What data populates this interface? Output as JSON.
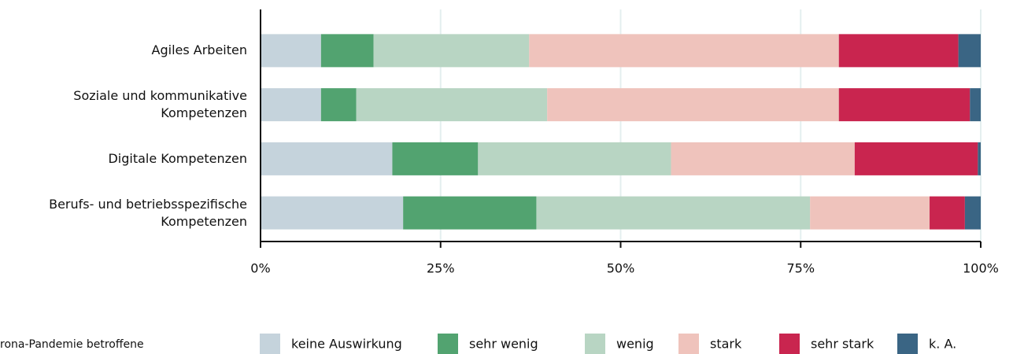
{
  "chart_data": {
    "type": "stacked-bar-horizontal",
    "categories": [
      "Agiles Arbeiten",
      "Soziale und kommunikative\nKompetenzen",
      "Digitale Kompetenzen",
      "Berufs- und betriebsspezifische\nKompetenzen"
    ],
    "series": [
      {
        "name": "keine Auswirkung",
        "color": "#c5d3dc",
        "values": [
          8.4,
          8.4,
          18.3,
          19.8
        ]
      },
      {
        "name": "sehr wenig",
        "color": "#52a370",
        "values": [
          7.3,
          4.9,
          11.9,
          18.5
        ]
      },
      {
        "name": "wenig",
        "color": "#b8d5c3",
        "values": [
          21.6,
          26.5,
          26.8,
          38.0
        ]
      },
      {
        "name": "stark",
        "color": "#efc3bc",
        "values": [
          43.0,
          40.5,
          25.5,
          16.6
        ]
      },
      {
        "name": "sehr stark",
        "color": "#c9254f",
        "values": [
          16.6,
          18.2,
          17.1,
          4.9
        ]
      },
      {
        "name": "k. A.",
        "color": "#3a6584",
        "values": [
          3.1,
          1.5,
          0.4,
          2.2
        ]
      }
    ],
    "xlim": [
      0,
      100
    ],
    "xticks": [
      {
        "value": 0,
        "label": "0%"
      },
      {
        "value": 25,
        "label": "25%"
      },
      {
        "value": 50,
        "label": "50%"
      },
      {
        "value": 75,
        "label": "75%"
      },
      {
        "value": 100,
        "label": "100%"
      }
    ],
    "grid": true,
    "note": "rona-Pandemie betroffene"
  }
}
